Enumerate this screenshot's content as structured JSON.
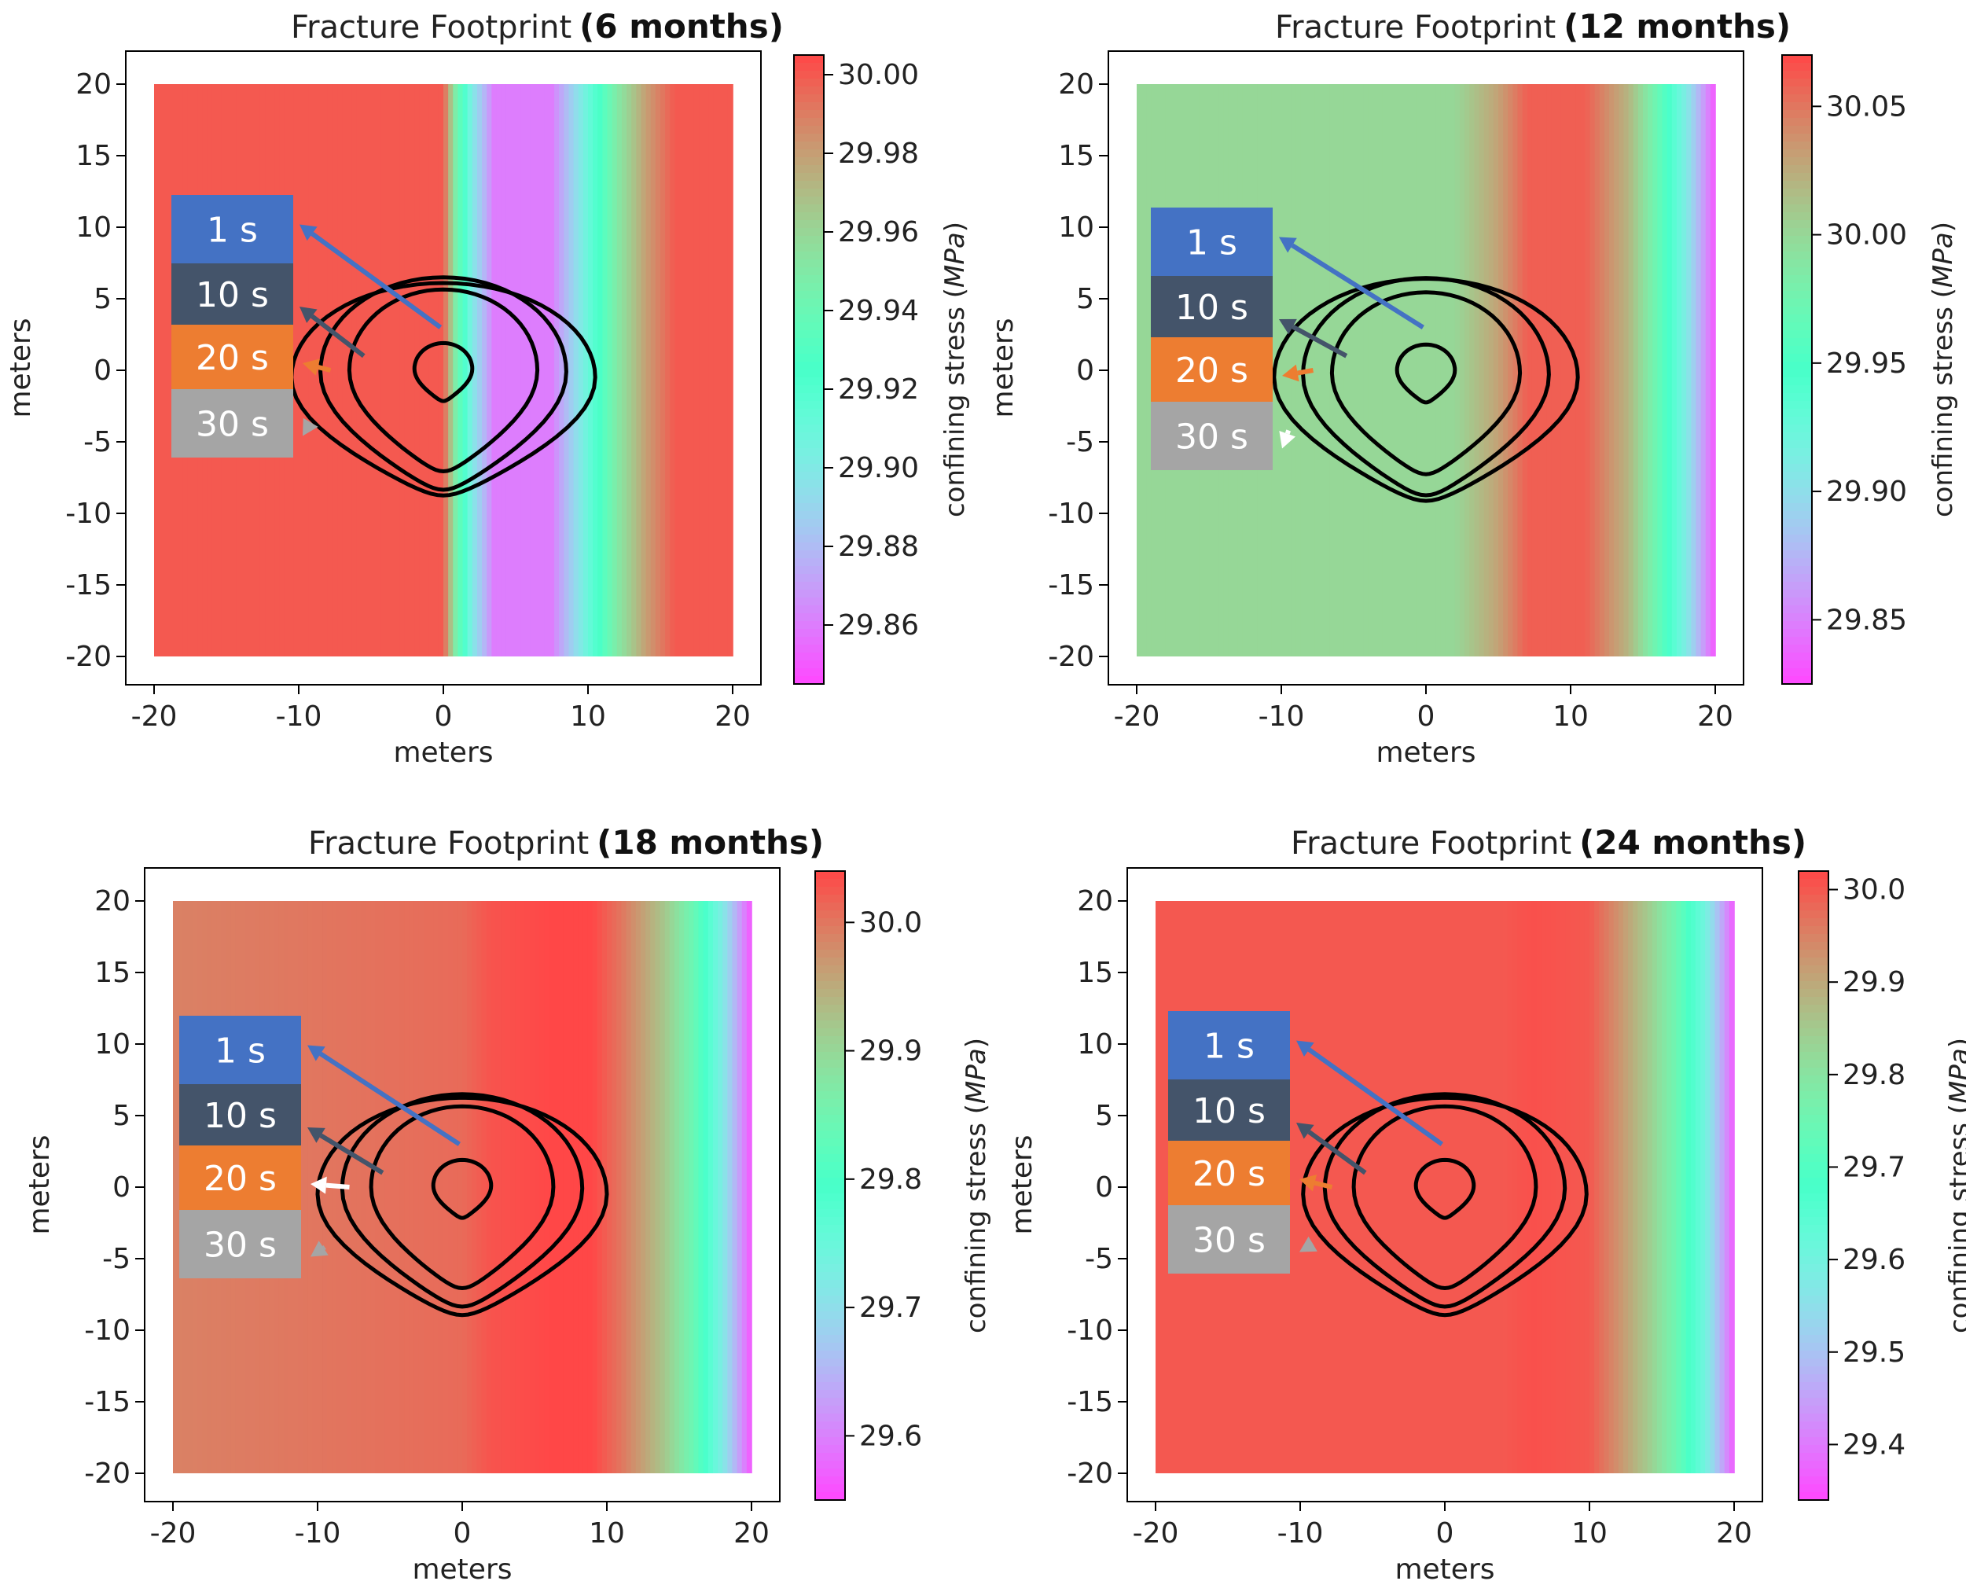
{
  "chart_data": [
    {
      "type": "heatmap",
      "title": "Fracture Footprint",
      "title_suffix": "(6 months)",
      "xlabel": "meters",
      "ylabel": "meters",
      "xlim": [
        -20,
        20
      ],
      "ylim": [
        -20,
        20
      ],
      "xticks": [
        -20,
        -10,
        0,
        10,
        20
      ],
      "yticks": [
        -20,
        -15,
        -10,
        -5,
        0,
        5,
        10,
        15,
        20
      ],
      "colorbar": {
        "label": "confining stress",
        "unit": "MPa",
        "colormap": "rainbow",
        "range": [
          29.845,
          30.005
        ],
        "ticks": [
          29.86,
          29.88,
          29.9,
          29.92,
          29.94,
          29.96,
          29.98,
          30.0
        ],
        "tick_labels": [
          "29.86",
          "29.88",
          "29.90",
          "29.92",
          "29.94",
          "29.96",
          "29.98",
          "30.00"
        ]
      },
      "stress_profile_by_x": [
        [
          -20,
          30.0
        ],
        [
          0,
          30.0
        ],
        [
          0.8,
          29.95
        ],
        [
          2,
          29.9
        ],
        [
          3.5,
          29.86
        ],
        [
          7.5,
          29.86
        ],
        [
          10,
          29.91
        ],
        [
          12,
          29.95
        ],
        [
          14,
          29.98
        ],
        [
          16,
          30.0
        ],
        [
          20,
          30.0
        ]
      ],
      "contours": [
        {
          "time": "1 s",
          "half_width": 2.0,
          "height": 3.6,
          "y_center": 0.1
        },
        {
          "time": "10 s",
          "half_width": 6.5,
          "height": 11.3,
          "y_center": 0.0
        },
        {
          "time": "20 s",
          "half_width": 8.5,
          "height": 13.2,
          "y_center": -0.1
        },
        {
          "time": "30 s",
          "half_width": 10.5,
          "height": 13.2,
          "y_center": -0.5
        }
      ],
      "legend_labels": [
        "1 s",
        "10 s",
        "20 s",
        "30 s"
      ],
      "legend_colors": [
        "#4472c4",
        "#44546a",
        "#ed7d31",
        "#a5a5a5"
      ],
      "arrow_colors": [
        "#4472c4",
        "#44546a",
        "#ed7d31",
        "#a5a5a5"
      ]
    },
    {
      "type": "heatmap",
      "title": "Fracture Footprint",
      "title_suffix": "(12 months)",
      "xlabel": "meters",
      "ylabel": "meters",
      "xlim": [
        -20,
        20
      ],
      "ylim": [
        -20,
        20
      ],
      "xticks": [
        -20,
        -10,
        0,
        10,
        20
      ],
      "yticks": [
        -20,
        -15,
        -10,
        -5,
        0,
        5,
        10,
        15,
        20
      ],
      "colorbar": {
        "label": "confining stress",
        "unit": "MPa",
        "colormap": "rainbow",
        "range": [
          29.825,
          30.07
        ],
        "ticks": [
          29.85,
          29.9,
          29.95,
          30.0,
          30.05
        ],
        "tick_labels": [
          "29.85",
          "29.90",
          "29.95",
          "30.00",
          "30.05"
        ]
      },
      "stress_profile_by_x": [
        [
          -20,
          30.0
        ],
        [
          2,
          30.0
        ],
        [
          5,
          30.03
        ],
        [
          7,
          30.06
        ],
        [
          11,
          30.06
        ],
        [
          14,
          30.02
        ],
        [
          16,
          29.97
        ],
        [
          18,
          29.91
        ],
        [
          20,
          29.83
        ]
      ],
      "contours": [
        {
          "time": "1 s",
          "half_width": 2.0,
          "height": 3.6,
          "y_center": 0.0
        },
        {
          "time": "10 s",
          "half_width": 6.5,
          "height": 11.3,
          "y_center": -0.2
        },
        {
          "time": "20 s",
          "half_width": 8.5,
          "height": 13.5,
          "y_center": -0.3
        },
        {
          "time": "30 s",
          "half_width": 10.5,
          "height": 13.8,
          "y_center": -0.5
        }
      ],
      "legend_labels": [
        "1 s",
        "10 s",
        "20 s",
        "30 s"
      ],
      "legend_colors": [
        "#4472c4",
        "#44546a",
        "#ed7d31",
        "#a5a5a5"
      ],
      "arrow_colors": [
        "#4472c4",
        "#44546a",
        "#ed7d31",
        "#ffffff"
      ]
    },
    {
      "type": "heatmap",
      "title": "Fracture Footprint",
      "title_suffix": "(18 months)",
      "xlabel": "meters",
      "ylabel": "meters",
      "xlim": [
        -20,
        20
      ],
      "ylim": [
        -20,
        20
      ],
      "xticks": [
        -20,
        -10,
        0,
        10,
        20
      ],
      "yticks": [
        -20,
        -15,
        -10,
        -5,
        0,
        5,
        10,
        15,
        20
      ],
      "colorbar": {
        "label": "confining stress",
        "unit": "MPa",
        "colormap": "rainbow",
        "range": [
          29.55,
          30.04
        ],
        "ticks": [
          29.6,
          29.7,
          29.8,
          29.9,
          30.0
        ],
        "tick_labels": [
          "29.6",
          "29.7",
          "29.8",
          "29.9",
          "30.0"
        ]
      },
      "stress_profile_by_x": [
        [
          -20,
          29.99
        ],
        [
          0,
          30.01
        ],
        [
          2,
          30.03
        ],
        [
          6,
          30.04
        ],
        [
          9,
          30.04
        ],
        [
          11,
          30.0
        ],
        [
          14,
          29.92
        ],
        [
          16,
          29.84
        ],
        [
          18,
          29.72
        ],
        [
          20,
          29.56
        ]
      ],
      "contours": [
        {
          "time": "1 s",
          "half_width": 2.0,
          "height": 3.6,
          "y_center": 0.1
        },
        {
          "time": "10 s",
          "half_width": 6.3,
          "height": 11.3,
          "y_center": 0.0
        },
        {
          "time": "20 s",
          "half_width": 8.3,
          "height": 13.2,
          "y_center": -0.1
        },
        {
          "time": "30 s",
          "half_width": 10.0,
          "height": 13.5,
          "y_center": -0.5
        }
      ],
      "legend_labels": [
        "1 s",
        "10 s",
        "20 s",
        "30 s"
      ],
      "legend_colors": [
        "#4472c4",
        "#44546a",
        "#ed7d31",
        "#a5a5a5"
      ],
      "arrow_colors": [
        "#4472c4",
        "#44546a",
        "#ffffff",
        "#a5a5a5"
      ]
    },
    {
      "type": "heatmap",
      "title": "Fracture Footprint",
      "title_suffix": "(24 months)",
      "xlabel": "meters",
      "ylabel": "meters",
      "xlim": [
        -20,
        20
      ],
      "ylim": [
        -20,
        20
      ],
      "xticks": [
        -20,
        -10,
        0,
        10,
        20
      ],
      "yticks": [
        -20,
        -15,
        -10,
        -5,
        0,
        5,
        10,
        15,
        20
      ],
      "colorbar": {
        "label": "confining stress",
        "unit": "MPa",
        "colormap": "rainbow",
        "range": [
          29.34,
          30.02
        ],
        "ticks": [
          29.4,
          29.5,
          29.6,
          29.7,
          29.8,
          29.9,
          30.0
        ],
        "tick_labels": [
          "29.4",
          "29.5",
          "29.6",
          "29.7",
          "29.8",
          "29.9",
          "30.0"
        ]
      },
      "stress_profile_by_x": [
        [
          -20,
          30.0
        ],
        [
          4,
          30.0
        ],
        [
          6,
          30.01
        ],
        [
          10,
          30.0
        ],
        [
          12,
          29.93
        ],
        [
          14,
          29.85
        ],
        [
          16,
          29.75
        ],
        [
          18,
          29.6
        ],
        [
          20,
          29.36
        ]
      ],
      "contours": [
        {
          "time": "1 s",
          "half_width": 2.0,
          "height": 3.6,
          "y_center": 0.1
        },
        {
          "time": "10 s",
          "half_width": 6.3,
          "height": 11.3,
          "y_center": 0.0
        },
        {
          "time": "20 s",
          "half_width": 8.3,
          "height": 13.2,
          "y_center": -0.1
        },
        {
          "time": "30 s",
          "half_width": 9.8,
          "height": 13.5,
          "y_center": -0.5
        }
      ],
      "legend_labels": [
        "1 s",
        "10 s",
        "20 s",
        "30 s"
      ],
      "legend_colors": [
        "#4472c4",
        "#44546a",
        "#ed7d31",
        "#a5a5a5"
      ],
      "arrow_colors": [
        "#4472c4",
        "#44546a",
        "#ed7d31",
        "#a5a5a5"
      ]
    }
  ]
}
